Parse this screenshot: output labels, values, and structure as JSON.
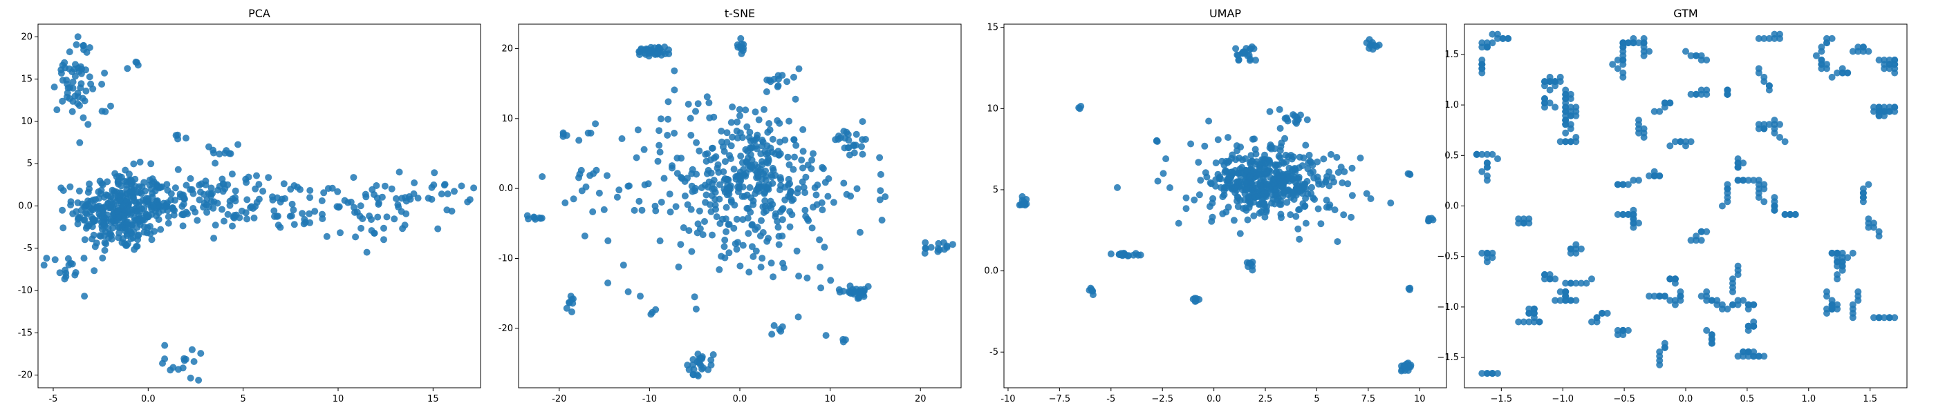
{
  "chart_data": [
    {
      "type": "scatter",
      "title": "PCA",
      "xlim": [
        -5.8,
        17.5
      ],
      "ylim": [
        -21.5,
        21.5
      ],
      "xticks": [
        -5,
        0,
        5,
        10,
        15
      ],
      "yticks": [
        -20,
        -15,
        -10,
        -5,
        0,
        5,
        10,
        15,
        20
      ],
      "color": "#1f77b4",
      "clusters": [
        {
          "cx": -1.5,
          "cy": -0.6,
          "sx": 1.2,
          "sy": 2.4,
          "n": 320
        },
        {
          "cx": 1.8,
          "cy": 0.5,
          "sx": 1.8,
          "sy": 1.5,
          "n": 120
        },
        {
          "cx": 6.5,
          "cy": 0.2,
          "sx": 2.0,
          "sy": 1.6,
          "n": 50
        },
        {
          "cx": 11.5,
          "cy": -0.8,
          "sx": 2.2,
          "sy": 1.7,
          "n": 55
        },
        {
          "cx": 14.0,
          "cy": 1.5,
          "sx": 1.5,
          "sy": 1.2,
          "n": 30
        },
        {
          "cx": -3.8,
          "cy": 16.0,
          "sx": 0.5,
          "sy": 2.0,
          "n": 40
        },
        {
          "cx": -3.3,
          "cy": 12.5,
          "sx": 0.6,
          "sy": 1.3,
          "n": 20
        },
        {
          "cx": -4.3,
          "cy": -7.5,
          "sx": 0.5,
          "sy": 0.8,
          "n": 15
        },
        {
          "cx": 2.0,
          "cy": -18.3,
          "sx": 0.6,
          "sy": 1.2,
          "n": 15
        },
        {
          "cx": 1.5,
          "cy": 8.0,
          "sx": 0.2,
          "sy": 0.3,
          "n": 4
        },
        {
          "cx": -0.8,
          "cy": 16.5,
          "sx": 0.15,
          "sy": 0.3,
          "n": 4
        },
        {
          "cx": 3.5,
          "cy": 6.0,
          "sx": 0.6,
          "sy": 0.8,
          "n": 10
        }
      ]
    },
    {
      "type": "scatter",
      "title": "t-SNE",
      "xlim": [
        -24.5,
        24.5
      ],
      "ylim": [
        -28.5,
        23.5
      ],
      "xticks": [
        -20,
        -10,
        0,
        10,
        20
      ],
      "yticks": [
        -20,
        -10,
        0,
        10,
        20
      ],
      "color": "#1f77b4",
      "clusters": [
        {
          "cx": 0,
          "cy": 0,
          "sx": 7.0,
          "sy": 7.0,
          "n": 320
        },
        {
          "cx": 1.5,
          "cy": 2.0,
          "sx": 3.0,
          "sy": 3.0,
          "n": 120
        },
        {
          "cx": -9.5,
          "cy": 19.7,
          "sx": 1.0,
          "sy": 0.4,
          "n": 35
        },
        {
          "cx": 0.2,
          "cy": 20.5,
          "sx": 0.2,
          "sy": 0.6,
          "n": 10
        },
        {
          "cx": 4.0,
          "cy": 15.5,
          "sx": 0.5,
          "sy": 0.7,
          "n": 10
        },
        {
          "cx": 12.8,
          "cy": -14.8,
          "sx": 1.0,
          "sy": 0.4,
          "n": 30
        },
        {
          "cx": -4.5,
          "cy": -25.0,
          "sx": 0.8,
          "sy": 0.8,
          "n": 25
        },
        {
          "cx": 22.0,
          "cy": -8.5,
          "sx": 0.8,
          "sy": 0.6,
          "n": 15
        },
        {
          "cx": -22.5,
          "cy": -4.2,
          "sx": 0.5,
          "sy": 0.2,
          "n": 8
        },
        {
          "cx": -18.8,
          "cy": -15.8,
          "sx": 0.3,
          "sy": 0.8,
          "n": 8
        },
        {
          "cx": 4.5,
          "cy": -20.0,
          "sx": 0.3,
          "sy": 0.4,
          "n": 5
        },
        {
          "cx": -19.5,
          "cy": 7.5,
          "sx": 0.2,
          "sy": 0.2,
          "n": 4
        },
        {
          "cx": 12.5,
          "cy": 7.0,
          "sx": 1.0,
          "sy": 1.0,
          "n": 20
        },
        {
          "cx": -16.5,
          "cy": 2.0,
          "sx": 1.2,
          "sy": 1.0,
          "n": 10
        },
        {
          "cx": -9.5,
          "cy": -17.5,
          "sx": 0.2,
          "sy": 0.2,
          "n": 3
        },
        {
          "cx": 11.5,
          "cy": -21.5,
          "sx": 0.2,
          "sy": 0.2,
          "n": 3
        }
      ]
    },
    {
      "type": "scatter",
      "title": "UMAP",
      "xlim": [
        -10.2,
        11.3
      ],
      "ylim": [
        -7.2,
        15.2
      ],
      "xticks": [
        -10.0,
        -7.5,
        -5.0,
        -2.5,
        0.0,
        2.5,
        5.0,
        7.5,
        10.0
      ],
      "yticks": [
        -5,
        0,
        5,
        10,
        15
      ],
      "color": "#1f77b4",
      "clusters": [
        {
          "cx": 2.5,
          "cy": 5.5,
          "sx": 1.3,
          "sy": 0.9,
          "n": 360
        },
        {
          "cx": 2.5,
          "cy": 5.5,
          "sx": 2.4,
          "sy": 1.5,
          "n": 120
        },
        {
          "cx": 1.6,
          "cy": 13.4,
          "sx": 0.3,
          "sy": 0.25,
          "n": 20
        },
        {
          "cx": 7.7,
          "cy": 14.0,
          "sx": 0.15,
          "sy": 0.15,
          "n": 10
        },
        {
          "cx": -9.3,
          "cy": 4.2,
          "sx": 0.12,
          "sy": 0.25,
          "n": 12
        },
        {
          "cx": -4.2,
          "cy": 1.0,
          "sx": 0.4,
          "sy": 0.07,
          "n": 15
        },
        {
          "cx": 1.8,
          "cy": 0.4,
          "sx": 0.15,
          "sy": 0.3,
          "n": 8
        },
        {
          "cx": 9.3,
          "cy": -6.0,
          "sx": 0.15,
          "sy": 0.25,
          "n": 15
        },
        {
          "cx": -6.0,
          "cy": -1.2,
          "sx": 0.1,
          "sy": 0.1,
          "n": 6
        },
        {
          "cx": -0.8,
          "cy": -1.8,
          "sx": 0.1,
          "sy": 0.12,
          "n": 6
        },
        {
          "cx": 10.6,
          "cy": 3.2,
          "sx": 0.1,
          "sy": 0.15,
          "n": 6
        },
        {
          "cx": -6.5,
          "cy": 10.1,
          "sx": 0.05,
          "sy": 0.05,
          "n": 3
        },
        {
          "cx": 3.8,
          "cy": 9.2,
          "sx": 0.3,
          "sy": 0.4,
          "n": 15
        },
        {
          "cx": 9.5,
          "cy": -1.1,
          "sx": 0.05,
          "sy": 0.05,
          "n": 3
        },
        {
          "cx": 9.5,
          "cy": 6.0,
          "sx": 0.05,
          "sy": 0.05,
          "n": 3
        },
        {
          "cx": -2.8,
          "cy": 8.0,
          "sx": 0.05,
          "sy": 0.05,
          "n": 3
        }
      ]
    },
    {
      "type": "scatter",
      "title": "GTM",
      "xlim": [
        -1.8,
        1.8
      ],
      "ylim": [
        -1.8,
        1.8
      ],
      "xticks": [
        -1.5,
        -1.0,
        -0.5,
        0.0,
        0.5,
        1.0,
        1.5
      ],
      "yticks": [
        -1.5,
        -1.0,
        -0.5,
        0.0,
        0.5,
        1.0,
        1.5
      ],
      "color": "#1f77b4",
      "grid_range": [
        -1.7,
        1.7
      ],
      "grid_step": 0.0425,
      "grid_cluster_count": 80,
      "grid_points_per_cluster": 7
    }
  ]
}
